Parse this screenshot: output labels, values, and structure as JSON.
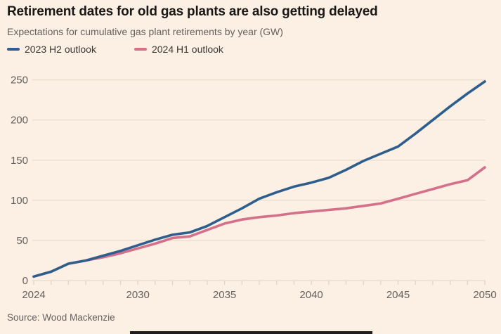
{
  "title": "Retirement dates for old gas plants are also getting delayed",
  "subtitle": "Expectations for cumulative gas plant retirements by year (GW)",
  "source": "Source: Wood Mackenzie",
  "colors": {
    "background": "#FCF0E5",
    "blue": "#2E5E8E",
    "pink": "#D4708A",
    "title_text": "#1A1817",
    "muted_text": "#66605C",
    "legend_text": "#3B3832",
    "gridline": "#EADDCE",
    "tick": "#E3D5C5",
    "bottom_bar": "#1F1F1F"
  },
  "legend": {
    "items": [
      {
        "label": "2023 H2 outlook",
        "color": "#2E5E8E"
      },
      {
        "label": "2024 H1 outlook",
        "color": "#D4708A"
      }
    ]
  },
  "chart_data": {
    "type": "line",
    "title": "Retirement dates for old gas plants are also getting delayed",
    "subtitle": "Expectations for cumulative gas plant retirements by year (GW)",
    "xlabel": "",
    "ylabel": "GW",
    "x": [
      2024,
      2025,
      2026,
      2027,
      2028,
      2029,
      2030,
      2031,
      2032,
      2033,
      2034,
      2035,
      2036,
      2037,
      2038,
      2039,
      2040,
      2041,
      2042,
      2043,
      2044,
      2045,
      2046,
      2047,
      2048,
      2049,
      2050
    ],
    "series": [
      {
        "name": "2023 H2 outlook",
        "color": "#2E5E8E",
        "values": [
          5,
          11,
          21,
          25,
          31,
          37,
          44,
          51,
          57,
          60,
          68,
          79,
          90,
          102,
          110,
          117,
          122,
          128,
          138,
          149,
          158,
          167,
          183,
          200,
          217,
          233,
          248
        ]
      },
      {
        "name": "2024 H1 outlook",
        "color": "#D4708A",
        "values": [
          5,
          11,
          21,
          25,
          29,
          34,
          40,
          46,
          53,
          55,
          63,
          71,
          76,
          79,
          81,
          84,
          86,
          88,
          90,
          93,
          96,
          102,
          108,
          114,
          120,
          125,
          141
        ]
      }
    ],
    "xlim": [
      2024,
      2050
    ],
    "ylim": [
      0,
      250
    ],
    "yticks": [
      0,
      50,
      100,
      150,
      200,
      250
    ],
    "xticks_labeled": [
      2024,
      2030,
      2035,
      2040,
      2045,
      2050
    ],
    "grid": "horizontal",
    "legend_position": "top-left"
  }
}
